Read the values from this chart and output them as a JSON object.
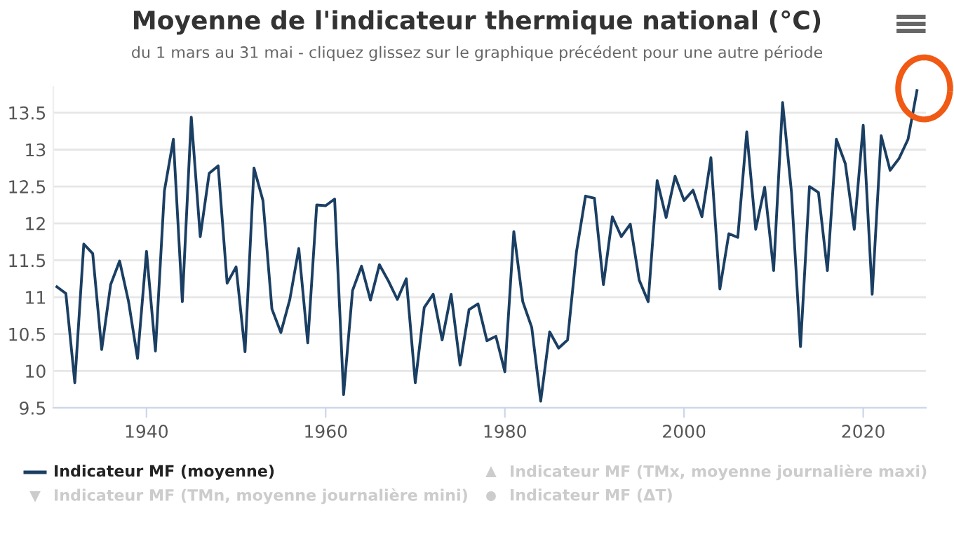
{
  "chart_data": {
    "type": "line",
    "title": "Moyenne de l'indicateur thermique national (°C)",
    "subtitle": "du 1 mars au 31 mai - cliquez glissez sur le graphique précédent pour une autre période",
    "x": [
      1930,
      1931,
      1932,
      1933,
      1934,
      1935,
      1936,
      1937,
      1938,
      1939,
      1940,
      1941,
      1942,
      1943,
      1944,
      1945,
      1946,
      1947,
      1948,
      1949,
      1950,
      1951,
      1952,
      1953,
      1954,
      1955,
      1956,
      1957,
      1958,
      1959,
      1960,
      1961,
      1962,
      1963,
      1964,
      1965,
      1966,
      1967,
      1968,
      1969,
      1970,
      1971,
      1972,
      1973,
      1974,
      1975,
      1976,
      1977,
      1978,
      1979,
      1980,
      1981,
      1982,
      1983,
      1984,
      1985,
      1986,
      1987,
      1988,
      1989,
      1990,
      1991,
      1992,
      1993,
      1994,
      1995,
      1996,
      1997,
      1998,
      1999,
      2000,
      2001,
      2002,
      2003,
      2004,
      2005,
      2006,
      2007,
      2008,
      2009,
      2010,
      2011,
      2012,
      2013,
      2014,
      2015,
      2016,
      2017,
      2018,
      2019,
      2020,
      2021,
      2022,
      2023,
      2024,
      2025,
      2026
    ],
    "series": [
      {
        "name": "Indicateur MF (moyenne)",
        "color": "#1b3f63",
        "values": [
          11.14,
          11.05,
          9.84,
          11.72,
          11.59,
          10.29,
          11.17,
          11.49,
          10.94,
          10.17,
          11.62,
          10.27,
          12.44,
          13.14,
          10.94,
          13.44,
          11.82,
          12.68,
          12.78,
          11.19,
          11.41,
          10.26,
          12.75,
          12.31,
          10.84,
          10.52,
          10.97,
          11.66,
          10.38,
          12.25,
          12.24,
          12.33,
          9.68,
          11.09,
          11.42,
          10.96,
          11.44,
          11.22,
          10.97,
          11.25,
          9.84,
          10.86,
          11.04,
          10.42,
          11.04,
          10.08,
          10.83,
          10.91,
          10.41,
          10.47,
          9.99,
          11.89,
          10.94,
          10.59,
          9.59,
          10.53,
          10.31,
          10.42,
          11.62,
          12.37,
          12.34,
          11.17,
          12.09,
          11.82,
          11.99,
          11.23,
          10.94,
          12.58,
          12.08,
          12.64,
          12.31,
          12.45,
          12.09,
          12.89,
          11.11,
          11.86,
          11.81,
          13.24,
          11.92,
          12.49,
          11.36,
          13.64,
          12.41,
          10.33,
          12.5,
          12.42,
          11.36,
          13.14,
          12.81,
          11.92,
          13.33,
          11.04,
          13.19,
          12.72,
          12.88,
          13.14,
          13.8
        ]
      },
      {
        "name": "Indicateur MF (TMx, moyenne journalière maxi)",
        "color": "#cccccc",
        "marker": "triangle",
        "values": [
          null,
          null,
          null,
          null,
          null,
          null,
          null,
          null,
          null,
          null,
          null,
          null,
          null,
          null,
          null,
          null,
          null,
          null,
          null,
          null,
          null,
          null,
          null,
          null,
          null,
          null,
          null,
          null,
          null,
          null,
          null,
          null,
          null,
          null,
          null,
          null,
          null,
          null,
          null,
          null,
          null,
          null,
          null,
          null,
          null,
          null,
          null,
          null,
          null,
          null,
          null,
          null,
          null,
          null,
          null,
          null,
          null,
          null,
          null,
          null,
          null,
          null,
          null,
          null,
          null,
          null,
          null,
          null,
          null,
          null,
          null,
          null,
          null,
          null,
          null,
          null,
          null,
          null,
          null,
          null,
          null,
          null,
          null,
          null,
          null,
          null,
          null,
          null,
          null,
          null,
          null,
          null,
          null,
          null,
          null,
          null,
          null
        ]
      },
      {
        "name": "Indicateur MF (TMn, moyenne journalière mini)",
        "color": "#cccccc",
        "marker": "triangle_down",
        "values": [
          null,
          null,
          null,
          null,
          null,
          null,
          null,
          null,
          null,
          null,
          null,
          null,
          null,
          null,
          null,
          null,
          null,
          null,
          null,
          null,
          null,
          null,
          null,
          null,
          null,
          null,
          null,
          null,
          null,
          null,
          null,
          null,
          null,
          null,
          null,
          null,
          null,
          null,
          null,
          null,
          null,
          null,
          null,
          null,
          null,
          null,
          null,
          null,
          null,
          null,
          null,
          null,
          null,
          null,
          null,
          null,
          null,
          null,
          null,
          null,
          null,
          null,
          null,
          null,
          null,
          null,
          null,
          null,
          null,
          null,
          null,
          null,
          null,
          null,
          null,
          null,
          null,
          null,
          null,
          null,
          null,
          null,
          null,
          null,
          null,
          null,
          null,
          null,
          null,
          null,
          null,
          null,
          null,
          null,
          null,
          null,
          null
        ]
      },
      {
        "name": "Indicateur MF (ΔT)",
        "color": "#cccccc",
        "marker": "circle",
        "values": [
          null,
          null,
          null,
          null,
          null,
          null,
          null,
          null,
          null,
          null,
          null,
          null,
          null,
          null,
          null,
          null,
          null,
          null,
          null,
          null,
          null,
          null,
          null,
          null,
          null,
          null,
          null,
          null,
          null,
          null,
          null,
          null,
          null,
          null,
          null,
          null,
          null,
          null,
          null,
          null,
          null,
          null,
          null,
          null,
          null,
          null,
          null,
          null,
          null,
          null,
          null,
          null,
          null,
          null,
          null,
          null,
          null,
          null,
          null,
          null,
          null,
          null,
          null,
          null,
          null,
          null,
          null,
          null,
          null,
          null,
          null,
          null,
          null,
          null,
          null,
          null,
          null,
          null,
          null,
          null,
          null,
          null,
          null,
          null,
          null,
          null,
          null,
          null,
          null,
          null,
          null,
          null,
          null,
          null,
          null,
          null,
          null
        ]
      }
    ],
    "xlim": [
      1929.6,
      2027
    ],
    "xticks": [
      1940,
      1960,
      1980,
      2000,
      2020
    ],
    "ylim": [
      9.5,
      13.85
    ],
    "yticks": [
      9.5,
      10,
      10.5,
      11,
      11.5,
      12,
      12.5,
      13,
      13.5
    ],
    "grid": "y",
    "legend": "bottom",
    "marker": "none",
    "line_style": "solid"
  }
}
